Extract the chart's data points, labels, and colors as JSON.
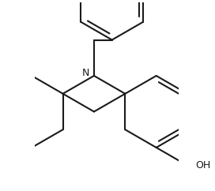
{
  "background_color": "#ffffff",
  "line_color": "#1a1a1a",
  "line_width": 1.5,
  "figsize": [
    2.72,
    2.42
  ],
  "dpi": 100,
  "N_label": "N",
  "OH_label": "OH",
  "font_size_label": 9,
  "xlim": [
    -1.8,
    2.2
  ],
  "ylim": [
    -2.6,
    2.6
  ],
  "N_x": -0.15,
  "N_y": 0.55,
  "bl": 1.0
}
